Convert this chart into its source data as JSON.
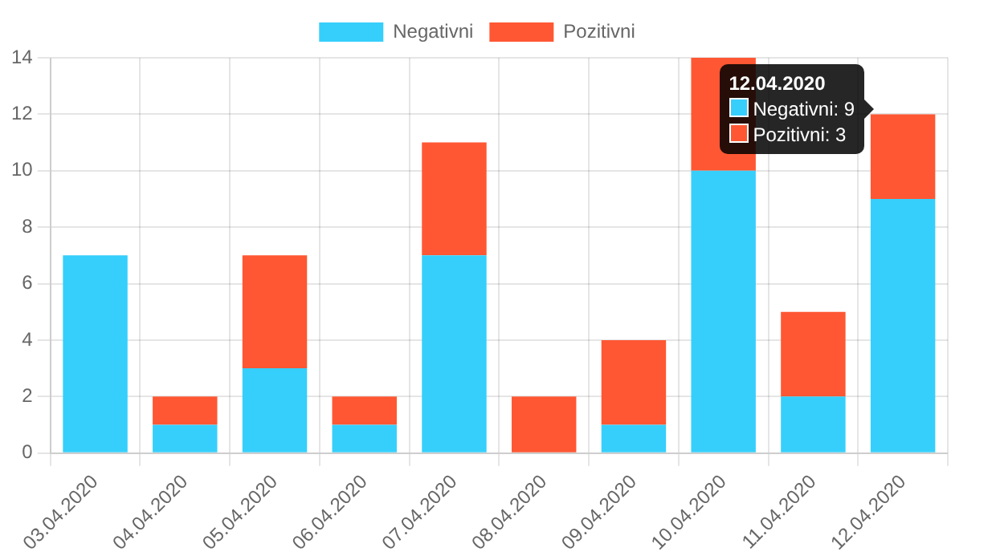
{
  "chart_data": {
    "type": "bar",
    "stacked": true,
    "categories": [
      "03.04.2020",
      "04.04.2020",
      "05.04.2020",
      "06.04.2020",
      "07.04.2020",
      "08.04.2020",
      "09.04.2020",
      "10.04.2020",
      "11.04.2020",
      "12.04.2020"
    ],
    "series": [
      {
        "name": "Negativni",
        "color": "#36cffb",
        "values": [
          7,
          1,
          3,
          1,
          7,
          0,
          1,
          10,
          2,
          9
        ]
      },
      {
        "name": "Pozitivni",
        "color": "#ff5733",
        "values": [
          0,
          1,
          4,
          1,
          4,
          2,
          3,
          4,
          3,
          3
        ]
      }
    ],
    "ylim": [
      0,
      14
    ],
    "yticks": [
      0,
      2,
      4,
      6,
      8,
      10,
      12,
      14
    ],
    "grid": true,
    "legend": "top",
    "annotations": [
      "12.04.2020",
      "Negativni: 9",
      "Pozitivni: 3"
    ]
  }
}
